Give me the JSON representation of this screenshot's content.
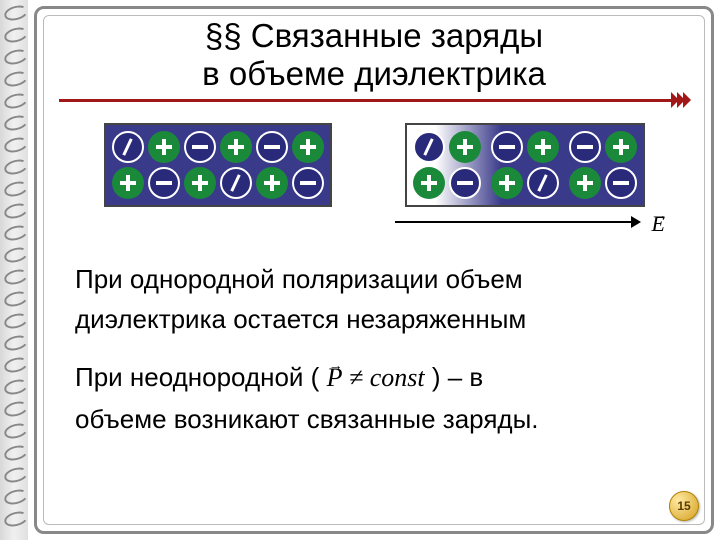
{
  "title_line1": "§§ Связанные заряды",
  "title_line2": "в объеме диэлектрика",
  "para1_line1": "При однородной поляризации объем",
  "para1_line2": "диэлектрика остается незаряженным",
  "para2_prefix": "При неоднородной ( ",
  "formula_vec": "P",
  "formula_rest": " ≠ const",
  "para2_suffix": " ) – в",
  "para2_line2": "объеме возникают связанные заряды.",
  "e_label": "E",
  "page_number": "15",
  "colors": {
    "panel_bg": "#3a3a8a",
    "plus": "#1a8a3a",
    "minus": "#2a2a7a",
    "underline": "#a01818"
  },
  "panels": {
    "left": [
      [
        "slash",
        "plus",
        "minus",
        "plus",
        "minus",
        "plus"
      ],
      [
        "plus",
        "minus",
        "plus",
        "slash",
        "plus",
        "minus"
      ]
    ],
    "right": [
      [
        "slash",
        "plus",
        "minus",
        "plus",
        "minus",
        "plus"
      ],
      [
        "plus",
        "minus",
        "plus",
        "slash",
        "plus",
        "minus"
      ]
    ]
  }
}
